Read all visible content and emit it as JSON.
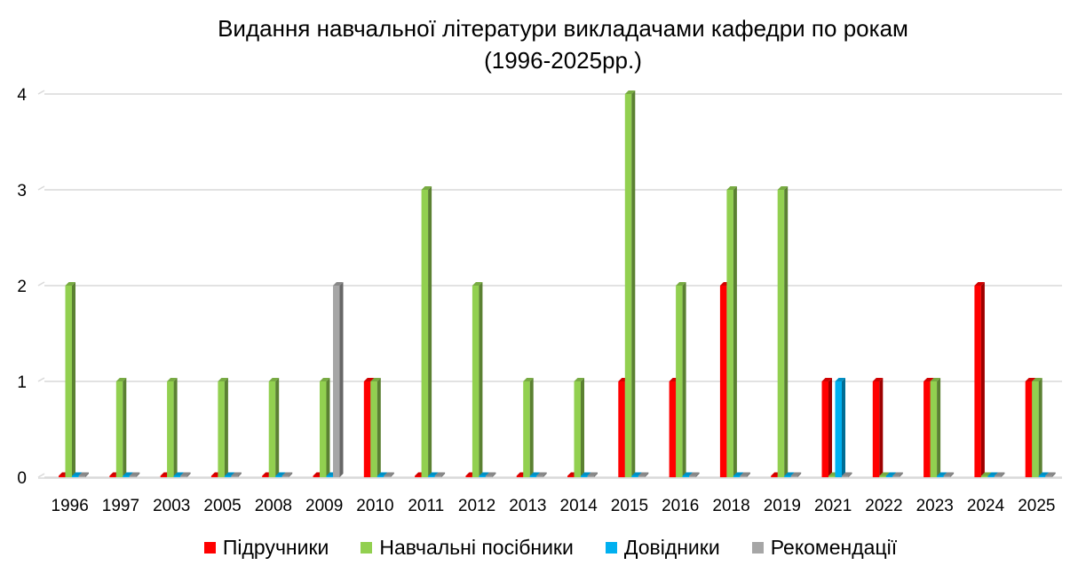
{
  "chart_data": {
    "type": "bar",
    "title": "Видання навчальної літератури викладачами кафедри по рокам",
    "subtitle": "(1996-2025рр.)",
    "xlabel": "",
    "ylabel": "",
    "ylim": [
      0,
      4
    ],
    "yticks": [
      0,
      1,
      2,
      3,
      4
    ],
    "grid": true,
    "legend_position": "bottom",
    "categories": [
      "1996",
      "1997",
      "2003",
      "2005",
      "2008",
      "2009",
      "2010",
      "2011",
      "2012",
      "2013",
      "2014",
      "2015",
      "2016",
      "2018",
      "2019",
      "2021",
      "2022",
      "2023",
      "2024",
      "2025"
    ],
    "series": [
      {
        "name": "Підручники",
        "color": "#ff0000",
        "values": [
          0,
          0,
          0,
          0,
          0,
          0,
          1,
          0,
          0,
          0,
          0,
          1,
          1,
          2,
          0,
          1,
          1,
          1,
          2,
          1
        ]
      },
      {
        "name": "Навчальні посібники",
        "color": "#92d050",
        "values": [
          2,
          1,
          1,
          1,
          1,
          1,
          1,
          3,
          2,
          1,
          1,
          4,
          2,
          3,
          3,
          0,
          0,
          1,
          0,
          1
        ]
      },
      {
        "name": "Довідники",
        "color": "#00b0f0",
        "values": [
          0,
          0,
          0,
          0,
          0,
          0,
          0,
          0,
          0,
          0,
          0,
          0,
          0,
          0,
          0,
          1,
          0,
          0,
          0,
          0
        ]
      },
      {
        "name": "Рекомендації",
        "color": "#a6a6a6",
        "values": [
          0,
          0,
          0,
          0,
          0,
          2,
          0,
          0,
          0,
          0,
          0,
          0,
          0,
          0,
          0,
          0,
          0,
          0,
          0,
          0
        ]
      }
    ]
  }
}
